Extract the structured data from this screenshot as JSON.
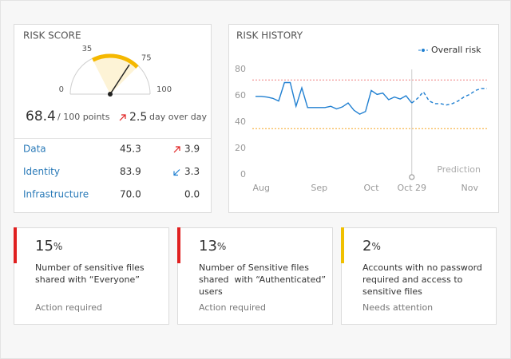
{
  "risk_score": {
    "title": "RISK SCORE",
    "gauge": {
      "min": 0,
      "max": 100,
      "ticks": [
        0,
        35,
        75,
        100
      ],
      "band": [
        35,
        75
      ],
      "value": 68.4
    },
    "value": "68.4",
    "unit": "/ 100 points",
    "change": "2.5",
    "change_trend": "up",
    "change_label": "day over day",
    "rows": [
      {
        "label": "Data",
        "value": "45.3",
        "trend": "up",
        "change": "3.9"
      },
      {
        "label": "Identity",
        "value": "83.9",
        "trend": "down",
        "change": "3.3"
      },
      {
        "label": "Infrastructure",
        "value": "70.0",
        "trend": "flat",
        "change": "0.0"
      }
    ]
  },
  "chart_data": {
    "type": "line",
    "title": "RISK HISTORY",
    "categories": [
      null,
      "Aug",
      null,
      null,
      null,
      null,
      null,
      null,
      null,
      null,
      null,
      "Sep",
      null,
      null,
      null,
      null,
      null,
      null,
      null,
      null,
      "Oct",
      null,
      null,
      null,
      null,
      null,
      null,
      "Oct 29",
      null,
      null,
      null,
      null,
      null,
      null,
      null,
      null,
      null,
      "Nov",
      null,
      null,
      null
    ],
    "series": [
      {
        "name": "Overall risk",
        "color": "#1f7fd1",
        "dash": false,
        "values": [
          59.5,
          59.5,
          59,
          58,
          56,
          70,
          70,
          52,
          66,
          51,
          51,
          51,
          51,
          52,
          50,
          51.5,
          54.5,
          49,
          46,
          48,
          64,
          61,
          62,
          57,
          59,
          57.5,
          60,
          54.5,
          null,
          null,
          null,
          null,
          null,
          null,
          null,
          null,
          null,
          null,
          null,
          null,
          null
        ]
      },
      {
        "name": "Prediction",
        "color": "#1f7fd1",
        "dash": true,
        "values": [
          null,
          null,
          null,
          null,
          null,
          null,
          null,
          null,
          null,
          null,
          null,
          null,
          null,
          null,
          null,
          null,
          null,
          null,
          null,
          null,
          null,
          null,
          null,
          null,
          null,
          null,
          null,
          54.5,
          58,
          63,
          56,
          54,
          54,
          53,
          54,
          56,
          59,
          61,
          64,
          65.5,
          65.5
        ]
      }
    ],
    "ylim": [
      0,
      80
    ],
    "yticks": [
      0,
      20,
      40,
      60,
      80
    ],
    "grid": false,
    "legend": "top-right",
    "thresholds": [
      {
        "value": 72,
        "color": "#f08080"
      },
      {
        "value": 35,
        "color": "#f5a623"
      }
    ]
  },
  "cards": [
    {
      "value": "15",
      "unit": "%",
      "color": "#e02020",
      "lines": [
        "Number of sensitive files",
        "shared with “Everyone”"
      ],
      "status": "Action required"
    },
    {
      "value": "13",
      "unit": "%",
      "color": "#e02020",
      "lines": [
        "Number of Sensitive files",
        "shared  with “Authenticated”",
        "users"
      ],
      "status": "Action required"
    },
    {
      "value": "2",
      "unit": "%",
      "color": "#f0c000",
      "lines": [
        "Accounts with no password",
        "required and access to",
        "sensitive files"
      ],
      "status": "Needs attention"
    }
  ]
}
